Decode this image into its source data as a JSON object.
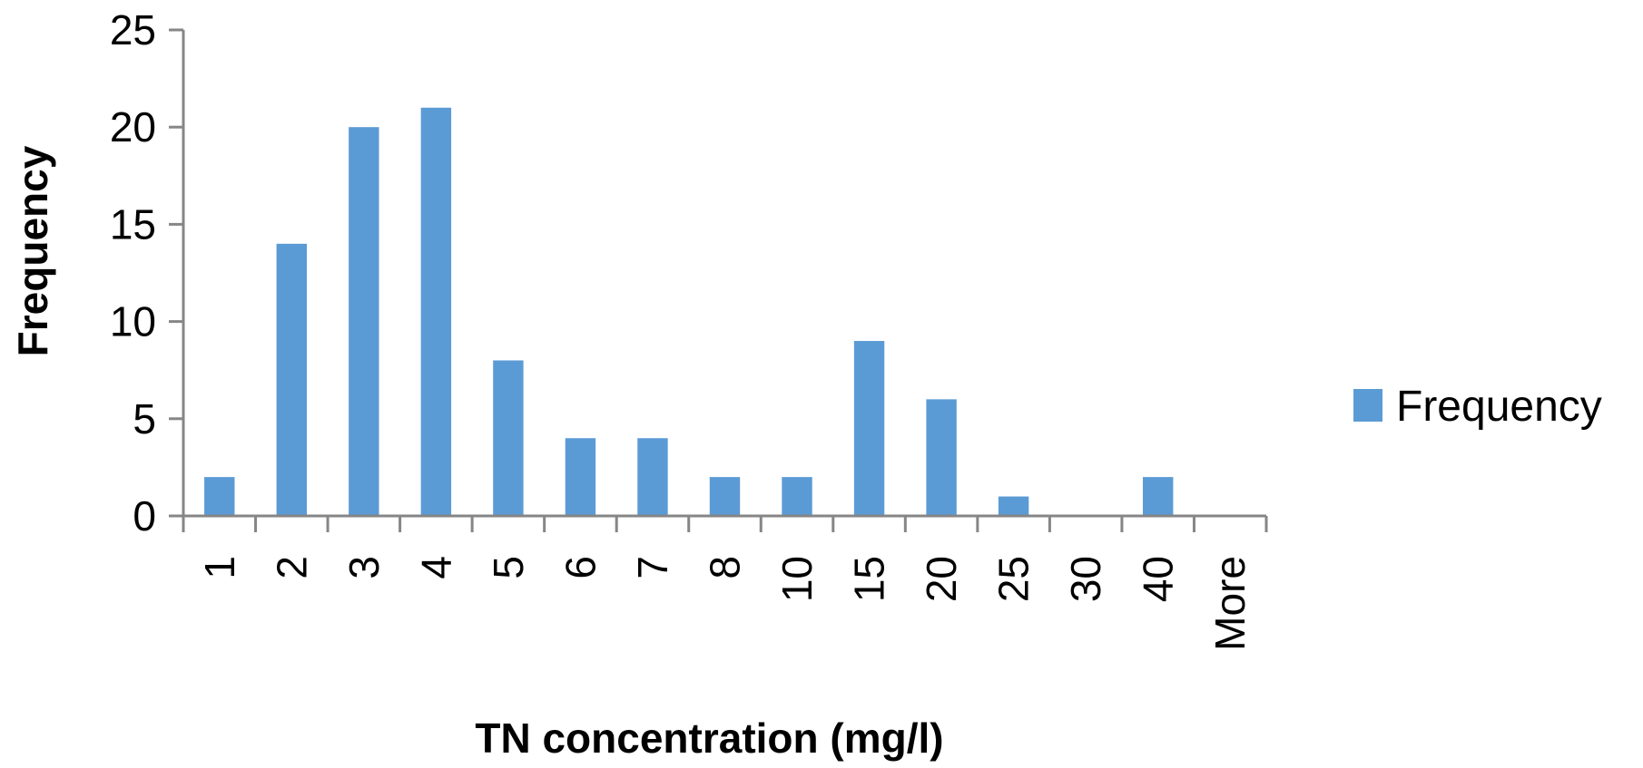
{
  "chart_data": {
    "type": "bar",
    "title": "",
    "xlabel": "TN concentration (mg/l)",
    "ylabel": "Frequency",
    "categories": [
      "1",
      "2",
      "3",
      "4",
      "5",
      "6",
      "7",
      "8",
      "10",
      "15",
      "20",
      "25",
      "30",
      "40",
      "More"
    ],
    "series": [
      {
        "name": "Frequency",
        "values": [
          2,
          14,
          20,
          21,
          8,
          4,
          4,
          2,
          2,
          9,
          6,
          1,
          0,
          2,
          0
        ]
      }
    ],
    "ylim": [
      0,
      25
    ],
    "yticks": [
      0,
      5,
      10,
      15,
      20,
      25
    ],
    "grid": false,
    "legend": "right",
    "colors": {
      "bar": "#5B9BD5",
      "axis": "#868686"
    }
  }
}
